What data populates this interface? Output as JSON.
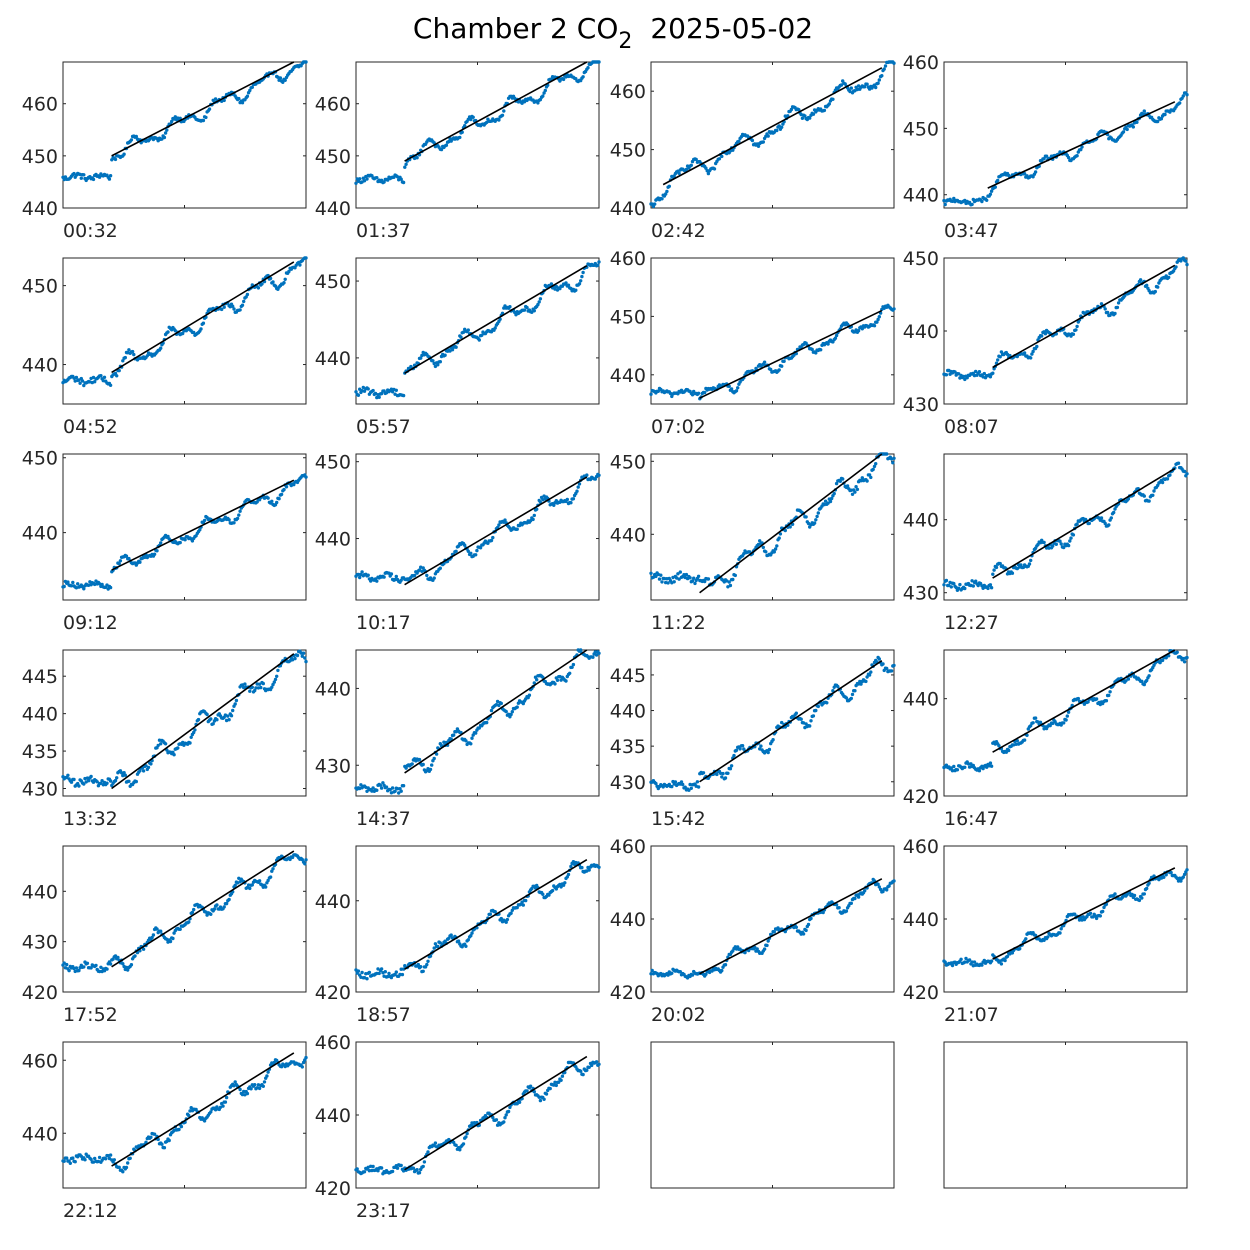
{
  "title": {
    "prefix": "Chamber 2 CO",
    "subscript": "2",
    "date": "2025-05-02"
  },
  "colors": {
    "points": "#0072BD",
    "fit": "#000000",
    "axis": "#262626"
  },
  "chart_data": {
    "type": "scatter",
    "panels": [
      {
        "label": "00:32",
        "ylim": [
          440,
          468
        ],
        "yticks": [
          440,
          450,
          460
        ],
        "fit": [
          450,
          468
        ],
        "start_level": 446,
        "fit_start": 0.2
      },
      {
        "label": "01:37",
        "ylim": [
          440,
          468
        ],
        "yticks": [
          440,
          450,
          460
        ],
        "fit": [
          449,
          468
        ],
        "start_level": 445.5,
        "fit_start": 0.2
      },
      {
        "label": "02:42",
        "ylim": [
          440,
          465
        ],
        "yticks": [
          440,
          450,
          460
        ],
        "fit": [
          444,
          464
        ],
        "start_level": 441,
        "fit_start": 0.05
      },
      {
        "label": "03:47",
        "ylim": [
          438,
          460
        ],
        "yticks": [
          440,
          450,
          460
        ],
        "fit": [
          441,
          454
        ],
        "start_level": 439,
        "fit_start": 0.18
      },
      {
        "label": "04:52",
        "ylim": [
          435,
          453.5
        ],
        "yticks": [
          440,
          450
        ],
        "fit": [
          439,
          453
        ],
        "start_level": 438,
        "fit_start": 0.2
      },
      {
        "label": "05:57",
        "ylim": [
          434,
          453
        ],
        "yticks": [
          440,
          450
        ],
        "fit": [
          438,
          452
        ],
        "start_level": 435.5,
        "fit_start": 0.2
      },
      {
        "label": "07:02",
        "ylim": [
          435,
          460
        ],
        "yticks": [
          440,
          450,
          460
        ],
        "fit": [
          436,
          451
        ],
        "start_level": 437,
        "fit_start": 0.2
      },
      {
        "label": "08:07",
        "ylim": [
          430,
          450
        ],
        "yticks": [
          430,
          440,
          450
        ],
        "fit": [
          435,
          449
        ],
        "start_level": 434,
        "fit_start": 0.2
      },
      {
        "label": "09:12",
        "ylim": [
          431,
          450.5
        ],
        "yticks": [
          440,
          450
        ],
        "fit": [
          435,
          447
        ],
        "start_level": 433,
        "fit_start": 0.2
      },
      {
        "label": "10:17",
        "ylim": [
          432,
          451
        ],
        "yticks": [
          440,
          450
        ],
        "fit": [
          434,
          448
        ],
        "start_level": 435,
        "fit_start": 0.2
      },
      {
        "label": "11:22",
        "ylim": [
          431,
          451
        ],
        "yticks": [
          440,
          450
        ],
        "fit": [
          432,
          451
        ],
        "start_level": 434,
        "fit_start": 0.2
      },
      {
        "label": "12:27",
        "ylim": [
          429,
          449
        ],
        "yticks": [
          430,
          440
        ],
        "fit": [
          432,
          447
        ],
        "start_level": 431,
        "fit_start": 0.2
      },
      {
        "label": "13:32",
        "ylim": [
          429,
          448.5
        ],
        "yticks": [
          430,
          435,
          440,
          445
        ],
        "fit": [
          430,
          448
        ],
        "start_level": 431,
        "fit_start": 0.2
      },
      {
        "label": "14:37",
        "ylim": [
          426,
          445
        ],
        "yticks": [
          430,
          440
        ],
        "fit": [
          429,
          445
        ],
        "start_level": 427,
        "fit_start": 0.2
      },
      {
        "label": "15:42",
        "ylim": [
          428,
          448.5
        ],
        "yticks": [
          430,
          435,
          440,
          445
        ],
        "fit": [
          430,
          447
        ],
        "start_level": 429.5,
        "fit_start": 0.2
      },
      {
        "label": "16:47",
        "ylim": [
          420,
          450
        ],
        "yticks": [
          420,
          440
        ],
        "fit": [
          429,
          450
        ],
        "start_level": 426,
        "fit_start": 0.2
      },
      {
        "label": "17:52",
        "ylim": [
          420,
          449
        ],
        "yticks": [
          420,
          430,
          440
        ],
        "fit": [
          425,
          448
        ],
        "start_level": 425,
        "fit_start": 0.2
      },
      {
        "label": "18:57",
        "ylim": [
          420,
          452
        ],
        "yticks": [
          420,
          440
        ],
        "fit": [
          425,
          449
        ],
        "start_level": 424,
        "fit_start": 0.2
      },
      {
        "label": "20:02",
        "ylim": [
          420,
          460
        ],
        "yticks": [
          420,
          440,
          460
        ],
        "fit": [
          425,
          451
        ],
        "start_level": 425,
        "fit_start": 0.2
      },
      {
        "label": "21:07",
        "ylim": [
          420,
          460
        ],
        "yticks": [
          420,
          440,
          460
        ],
        "fit": [
          429,
          454
        ],
        "start_level": 428,
        "fit_start": 0.2
      },
      {
        "label": "22:12",
        "ylim": [
          425,
          465
        ],
        "yticks": [
          440,
          460
        ],
        "fit": [
          431,
          462
        ],
        "start_level": 433,
        "fit_start": 0.2
      },
      {
        "label": "23:17",
        "ylim": [
          420,
          460
        ],
        "yticks": [
          420,
          440,
          460
        ],
        "fit": [
          425,
          456
        ],
        "start_level": 425,
        "fit_start": 0.2
      },
      {
        "label": "",
        "ylim": [
          0,
          1
        ],
        "yticks": [],
        "fit": null,
        "start_level": null,
        "fit_start": null
      },
      {
        "label": "",
        "ylim": [
          0,
          1
        ],
        "yticks": [],
        "fit": null,
        "start_level": null,
        "fit_start": null
      }
    ]
  }
}
